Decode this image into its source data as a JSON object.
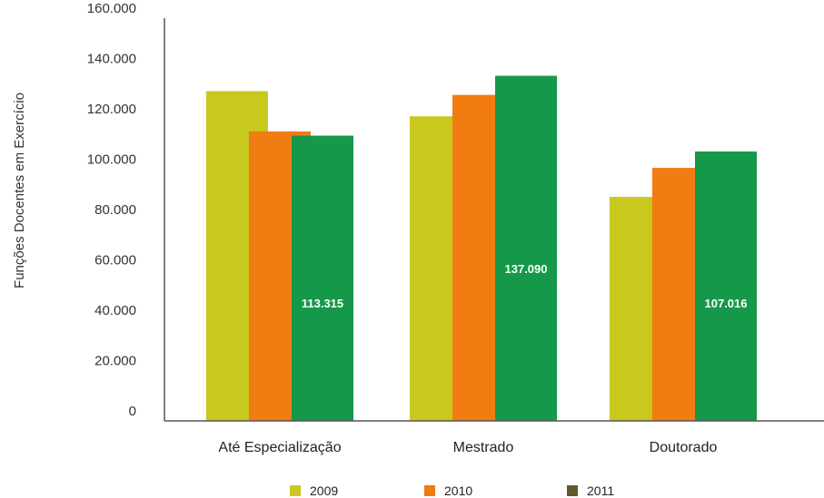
{
  "chart_data": {
    "type": "bar",
    "title": "",
    "xlabel": "",
    "ylabel": "Funções Docentes em Exercício",
    "ylim": [
      0,
      160000
    ],
    "yticks": [
      {
        "value": 0,
        "label": "0"
      },
      {
        "value": 20000,
        "label": "20.000"
      },
      {
        "value": 40000,
        "label": "40.000"
      },
      {
        "value": 60000,
        "label": "60.000"
      },
      {
        "value": 80000,
        "label": "80.000"
      },
      {
        "value": 100000,
        "label": "100.000"
      },
      {
        "value": 120000,
        "label": "120.000"
      },
      {
        "value": 140000,
        "label": "140.000"
      },
      {
        "value": 160000,
        "label": "160.000"
      }
    ],
    "categories": [
      "Até Especialização",
      "Mestrado",
      "Doutorado"
    ],
    "series": [
      {
        "name": "2009",
        "color": "#c8c81e",
        "values": [
          131000,
          121000,
          89000
        ],
        "labels": [
          "",
          "",
          ""
        ]
      },
      {
        "name": "2010",
        "color": "#f07c12",
        "values": [
          115000,
          129500,
          100500
        ],
        "labels": [
          "",
          "",
          ""
        ]
      },
      {
        "name": "2011",
        "color": "#16984a",
        "values": [
          113315,
          137090,
          107016
        ],
        "labels": [
          "113.315",
          "137.090",
          "107.016"
        ]
      }
    ],
    "legend_swatch_colors": [
      "#c8c81e",
      "#f07c12",
      "#5f5a2e"
    ],
    "grid": false,
    "legend_position": "bottom"
  }
}
